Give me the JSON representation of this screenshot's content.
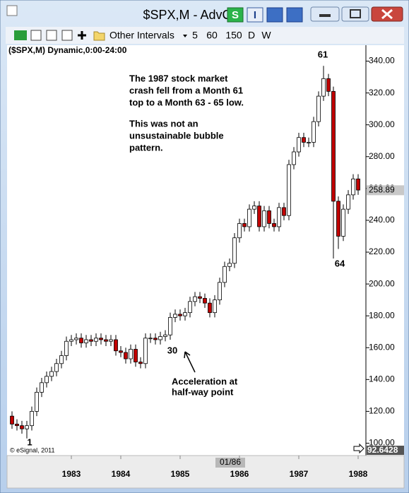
{
  "window": {
    "title": "$SPX,M - AdvCh",
    "buttons": [
      "S",
      "I"
    ],
    "toolbar": {
      "intervals": "Other Intervals",
      "presets": [
        "5",
        "60",
        "150",
        "D",
        "W"
      ]
    },
    "chart_label": "($SPX,M) Dynamic,0:00-24:00",
    "copyright": "© eSignal, 2011",
    "cursor_value": "92.6428",
    "cursor_date": "01/86"
  },
  "chart_data": {
    "type": "candlestick",
    "categories": [
      null,
      null,
      null,
      null,
      null,
      null,
      null,
      null,
      null,
      null,
      null,
      null,
      null,
      null,
      null,
      null,
      null,
      null,
      null,
      null,
      null,
      null,
      null,
      null,
      null,
      null,
      null,
      null,
      null,
      null,
      null,
      null,
      null,
      null,
      null,
      null,
      null,
      null,
      null,
      null,
      null,
      null,
      null,
      null,
      null,
      null,
      null,
      null,
      null,
      null,
      null,
      null,
      null,
      null,
      null,
      null,
      null,
      null,
      null,
      null,
      null,
      null,
      null,
      null,
      null,
      null,
      null,
      null,
      null,
      null,
      null
    ],
    "open": [
      117,
      112,
      111,
      109,
      111,
      120,
      132,
      138,
      142,
      145,
      150,
      155,
      164,
      165,
      166,
      163,
      165,
      164,
      166,
      165,
      164,
      165,
      158,
      157,
      153,
      159,
      151,
      150,
      166,
      166,
      165,
      167,
      168,
      179,
      181,
      180,
      182,
      189,
      192,
      191,
      188,
      182,
      190,
      201,
      211,
      213,
      229,
      238,
      236,
      247,
      249,
      236,
      246,
      238,
      236,
      248,
      243,
      275,
      283,
      292,
      289,
      289,
      302,
      318,
      329,
      321,
      252,
      230,
      247,
      256,
      266
    ],
    "high": [
      120,
      115,
      114,
      114,
      123,
      135,
      141,
      145,
      148,
      153,
      158,
      167,
      168,
      169,
      169,
      168,
      168,
      169,
      169,
      168,
      168,
      168,
      161,
      160,
      162,
      162,
      154,
      169,
      169,
      169,
      170,
      171,
      182,
      184,
      184,
      185,
      192,
      195,
      195,
      194,
      191,
      193,
      204,
      214,
      216,
      232,
      241,
      241,
      250,
      252,
      252,
      249,
      249,
      241,
      251,
      251,
      278,
      286,
      295,
      295,
      292,
      305,
      321,
      337,
      332,
      324,
      255,
      250,
      259,
      269,
      269
    ],
    "low": [
      109,
      108,
      106,
      103,
      108,
      117,
      129,
      135,
      139,
      142,
      147,
      152,
      161,
      162,
      160,
      160,
      161,
      161,
      162,
      161,
      161,
      155,
      154,
      150,
      150,
      148,
      147,
      147,
      163,
      162,
      162,
      164,
      165,
      176,
      177,
      177,
      179,
      186,
      188,
      185,
      179,
      179,
      187,
      198,
      208,
      210,
      226,
      233,
      233,
      244,
      233,
      233,
      235,
      233,
      233,
      240,
      240,
      272,
      280,
      286,
      286,
      286,
      299,
      315,
      318,
      216,
      222,
      227,
      244,
      253,
      256
    ],
    "close": [
      112,
      111,
      109,
      111,
      120,
      132,
      138,
      142,
      145,
      150,
      155,
      164,
      165,
      166,
      163,
      165,
      164,
      166,
      165,
      164,
      165,
      158,
      157,
      153,
      159,
      151,
      150,
      166,
      166,
      165,
      167,
      168,
      179,
      181,
      180,
      182,
      189,
      192,
      191,
      188,
      182,
      190,
      201,
      211,
      213,
      229,
      238,
      236,
      247,
      249,
      236,
      246,
      238,
      236,
      248,
      243,
      275,
      283,
      292,
      289,
      289,
      302,
      318,
      329,
      321,
      252,
      230,
      247,
      256,
      266,
      259
    ],
    "up_color": "#ffffff",
    "down_color": "#c00000",
    "ylim": [
      92,
      350
    ],
    "yticks": [
      {
        "value": 100,
        "label": "100.00"
      },
      {
        "value": 120,
        "label": "120.00"
      },
      {
        "value": 140,
        "label": "140.00"
      },
      {
        "value": 160,
        "label": "160.00"
      },
      {
        "value": 180,
        "label": "180.00"
      },
      {
        "value": 200,
        "label": "200.00"
      },
      {
        "value": 220,
        "label": "220.00"
      },
      {
        "value": 240,
        "label": "240.00"
      },
      {
        "value": 260,
        "label": "260.00"
      },
      {
        "value": 280,
        "label": "280.00"
      },
      {
        "value": 300,
        "label": "300.00"
      },
      {
        "value": 320,
        "label": "320.00"
      },
      {
        "value": 340,
        "label": "340.00"
      }
    ],
    "last_value": {
      "value": 258.89,
      "label": "258.89"
    },
    "xticks": [
      {
        "value": 12,
        "label": "1983"
      },
      {
        "value": 22,
        "label": "1984"
      },
      {
        "value": 34,
        "label": "1985"
      },
      {
        "value": 46,
        "label": "1986"
      },
      {
        "value": 58,
        "label": "1987"
      },
      {
        "value": 70,
        "label": "1988"
      }
    ],
    "annotations": [
      "The 1987 stock market",
      "crash fell from a Month 61",
      "top to a Month 63 - 65 low.",
      "This was not an",
      "unsustainable bubble",
      "pattern.",
      "Acceleration at",
      "half-way point",
      "1",
      "30",
      "61",
      "64"
    ]
  }
}
